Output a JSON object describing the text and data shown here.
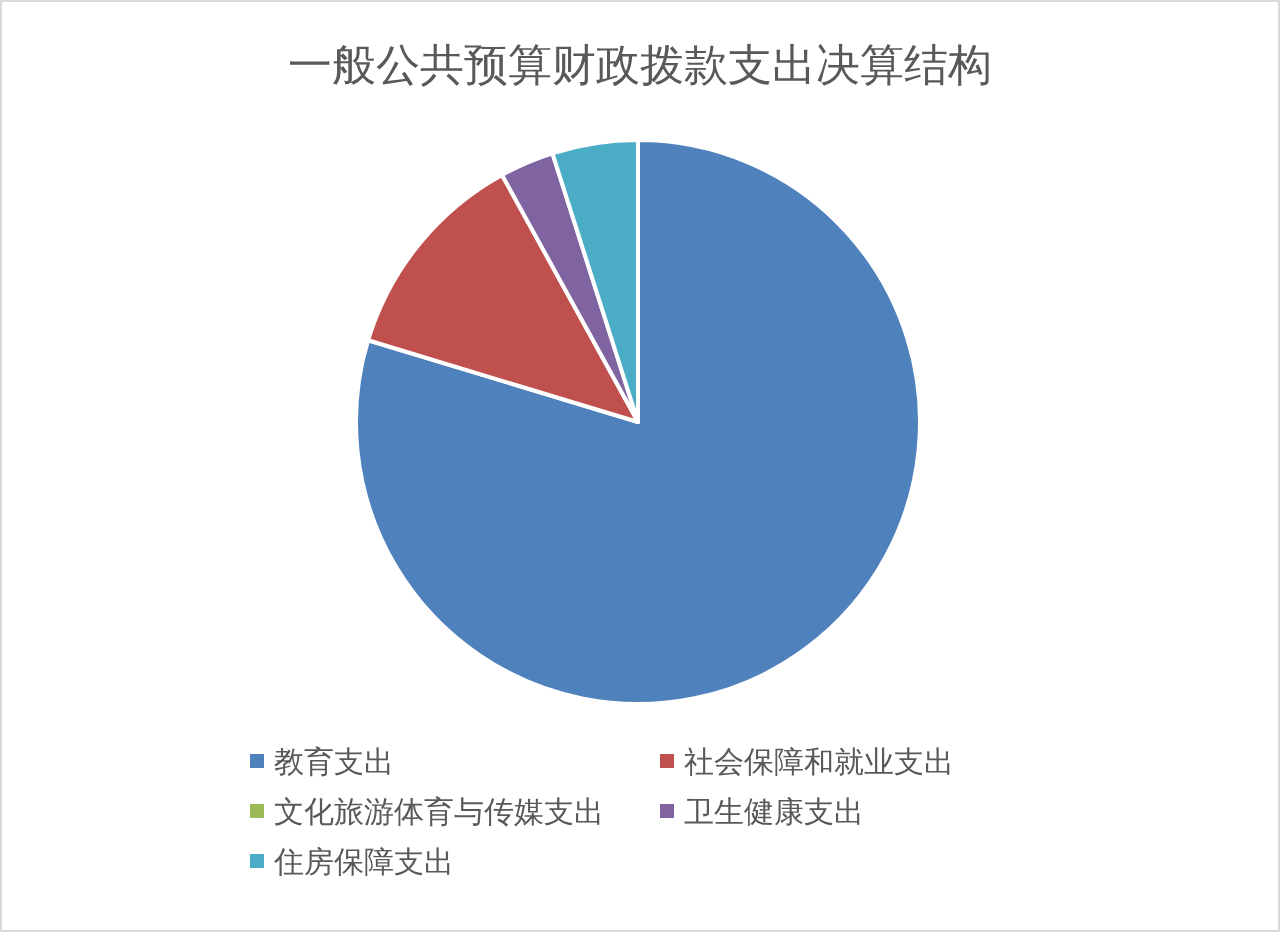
{
  "chart_data": {
    "type": "pie",
    "title": "一般公共预算财政拨款支出决算结构",
    "categories": [
      "教育支出",
      "社会保障和就业支出",
      "文化旅游体育与传媒支出",
      "卫生健康支出",
      "住房保障支出"
    ],
    "values": [
      79.6,
      12.3,
      null,
      3.1,
      4.9
    ],
    "colors": [
      "#4f81bd",
      "#c0504d",
      "#9bbb59",
      "#8064a2",
      "#4bacc6"
    ],
    "legend": "bottom"
  }
}
